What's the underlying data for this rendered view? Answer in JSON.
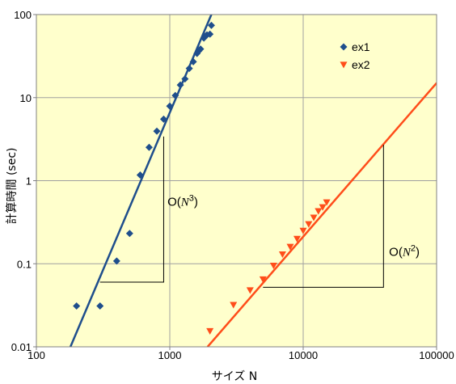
{
  "chart_data": {
    "type": "scatter",
    "xlabel": "サイズ N",
    "ylabel": "計算時間 (sec)",
    "xscale": "log",
    "yscale": "log",
    "xlim": [
      100,
      100000
    ],
    "ylim": [
      0.01,
      100
    ],
    "grid": true,
    "legend_position": "top-right",
    "x_ticks": [
      "100",
      "1000",
      "10000",
      "100000"
    ],
    "y_ticks": [
      "0.01",
      "0.1",
      "1",
      "10",
      "100"
    ],
    "series": [
      {
        "name": "ex1",
        "marker": "diamond",
        "color": "#1f4e8c",
        "x": [
          200,
          300,
          400,
          500,
          600,
          700,
          800,
          900,
          1000,
          1100,
          1200,
          1300,
          1400,
          1500,
          1600,
          1650,
          1700,
          1800,
          1850,
          1900,
          2000,
          2050
        ],
        "y": [
          0.031,
          0.031,
          0.108,
          0.232,
          1.17,
          2.52,
          3.95,
          5.5,
          7.9,
          10.6,
          14.2,
          16.8,
          22.5,
          27.0,
          34.0,
          36.5,
          38.5,
          52.0,
          55.0,
          57.0,
          58.0,
          74.0
        ]
      },
      {
        "name": "ex2",
        "marker": "triangle-down",
        "color": "#ff4d1a",
        "x": [
          2000,
          3000,
          4000,
          5000,
          6000,
          7000,
          8000,
          9000,
          10000,
          11000,
          12000,
          13000,
          14000,
          15000
        ],
        "y": [
          0.0155,
          0.032,
          0.048,
          0.065,
          0.095,
          0.13,
          0.16,
          0.2,
          0.25,
          0.3,
          0.36,
          0.43,
          0.48,
          0.55
        ]
      }
    ],
    "fit_lines": [
      {
        "series": "ex1",
        "color": "#1f4e8c",
        "x": [
          180,
          2050
        ],
        "y": [
          0.01,
          100
        ]
      },
      {
        "series": "ex2",
        "color": "#ff4d1a",
        "x": [
          1920,
          100000
        ],
        "y": [
          0.01,
          15
        ]
      }
    ],
    "annotations": [
      {
        "label_prefix": "O(",
        "label_var": "N",
        "label_exp": "3",
        "label_suffix": ")",
        "triangle": {
          "x": [
            300,
            900
          ],
          "y": [
            0.06,
            3.4
          ]
        },
        "label_at": {
          "x": 960,
          "y": 0.5
        }
      },
      {
        "label_prefix": "O(",
        "label_var": "N",
        "label_exp": "2",
        "label_suffix": ")",
        "triangle": {
          "x": [
            5000,
            40000
          ],
          "y": [
            0.052,
            2.7
          ]
        },
        "label_at": {
          "x": 44000,
          "y": 0.125
        }
      }
    ]
  }
}
